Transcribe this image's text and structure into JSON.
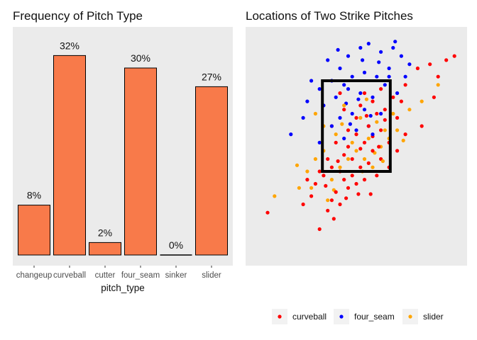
{
  "chart_data": [
    {
      "type": "bar",
      "title": "Frequency of Pitch Type",
      "xlabel": "pitch_type",
      "ylabel": "",
      "categories": [
        "changeup",
        "curveball",
        "cutter",
        "four_seam",
        "sinker",
        "slider"
      ],
      "values": [
        8,
        32,
        2,
        30,
        0,
        27
      ],
      "labels": [
        "8%",
        "32%",
        "2%",
        "30%",
        "0%",
        "27%"
      ],
      "ylim": [
        0,
        35
      ],
      "bar_color": "#F87A4A",
      "bar_outline": "#000000",
      "panel_background": "#EBEBEB",
      "grid": false
    },
    {
      "type": "scatter",
      "title": "Locations of Two Strike Pitches",
      "xlabel": "",
      "ylabel": "",
      "axes_visible": false,
      "panel_background": "#EBEBEB",
      "grid": false,
      "xlim": [
        -2.5,
        2.5
      ],
      "ylim": [
        -0.5,
        5.0
      ],
      "strike_zone": {
        "x": [
          -0.83,
          0.83
        ],
        "y": [
          1.7,
          3.9
        ],
        "color": "#000000"
      },
      "legend_position": "bottom",
      "series": [
        {
          "name": "curveball",
          "color": "#FF0000",
          "points": [
            [
              -2.17,
              0.7
            ],
            [
              -0.9,
              0.3
            ],
            [
              -0.7,
              0.75
            ],
            [
              -0.6,
              1.0
            ],
            [
              -1.1,
              1.1
            ],
            [
              -0.4,
              0.9
            ],
            [
              -0.5,
              1.2
            ],
            [
              -1.0,
              1.4
            ],
            [
              -0.8,
              1.6
            ],
            [
              -0.3,
              1.5
            ],
            [
              -0.6,
              1.8
            ],
            [
              -0.2,
              1.3
            ],
            [
              -0.4,
              1.7
            ],
            [
              -0.1,
              1.6
            ],
            [
              -0.7,
              2.0
            ],
            [
              -0.3,
              2.1
            ],
            [
              0.0,
              1.4
            ],
            [
              0.2,
              1.5
            ],
            [
              0.1,
              1.8
            ],
            [
              -0.2,
              2.3
            ],
            [
              0.3,
              1.9
            ],
            [
              -0.9,
              1.7
            ],
            [
              -1.2,
              1.5
            ],
            [
              -0.5,
              2.4
            ],
            [
              0.0,
              2.6
            ],
            [
              0.4,
              2.2
            ],
            [
              -0.1,
              2.0
            ],
            [
              0.2,
              2.4
            ],
            [
              0.5,
              1.6
            ],
            [
              0.6,
              2.0
            ],
            [
              0.3,
              2.8
            ],
            [
              0.6,
              2.7
            ],
            [
              0.8,
              2.4
            ],
            [
              0.5,
              3.1
            ],
            [
              0.0,
              3.0
            ],
            [
              0.4,
              3.4
            ],
            [
              0.7,
              3.2
            ],
            [
              0.2,
              3.6
            ],
            [
              0.6,
              3.7
            ],
            [
              1.0,
              3.0
            ],
            [
              0.9,
              3.5
            ],
            [
              1.2,
              3.8
            ],
            [
              1.5,
              4.2
            ],
            [
              1.8,
              4.3
            ],
            [
              2.0,
              4.0
            ],
            [
              2.2,
              4.4
            ],
            [
              2.4,
              4.5
            ],
            [
              1.9,
              3.5
            ],
            [
              1.6,
              2.8
            ],
            [
              1.2,
              2.6
            ],
            [
              1.0,
              2.2
            ],
            [
              0.8,
              1.8
            ],
            [
              -0.3,
              3.2
            ],
            [
              -0.6,
              2.8
            ],
            [
              -0.4,
              3.6
            ],
            [
              0.1,
              3.3
            ],
            [
              0.4,
              2.55
            ],
            [
              0.1,
              2.25
            ],
            [
              -0.2,
              2.7
            ],
            [
              -0.45,
              1.95
            ],
            [
              -0.75,
              1.35
            ],
            [
              -0.25,
              1.05
            ],
            [
              -0.55,
              0.55
            ],
            [
              -1.3,
              0.9
            ],
            [
              0.35,
              1.15
            ],
            [
              0.05,
              1.15
            ],
            [
              0.7,
              2.95
            ],
            [
              0.25,
              3.05
            ],
            [
              1.1,
              3.4
            ],
            [
              0.55,
              2.3
            ]
          ]
        },
        {
          "name": "four_seam",
          "color": "#0000FF",
          "points": [
            [
              -0.7,
              4.4
            ],
            [
              -0.4,
              4.2
            ],
            [
              -0.2,
              4.5
            ],
            [
              0.1,
              4.7
            ],
            [
              0.3,
              4.8
            ],
            [
              0.6,
              4.6
            ],
            [
              0.9,
              4.7
            ],
            [
              1.1,
              4.5
            ],
            [
              1.3,
              4.3
            ],
            [
              0.8,
              4.2
            ],
            [
              0.5,
              4.0
            ],
            [
              0.2,
              4.1
            ],
            [
              -0.1,
              4.0
            ],
            [
              -0.3,
              3.8
            ],
            [
              -0.6,
              3.9
            ],
            [
              -0.9,
              3.7
            ],
            [
              -1.1,
              3.9
            ],
            [
              -1.2,
              3.4
            ],
            [
              -0.8,
              3.3
            ],
            [
              -0.5,
              3.5
            ],
            [
              -0.2,
              3.7
            ],
            [
              0.1,
              3.6
            ],
            [
              0.4,
              3.5
            ],
            [
              0.7,
              3.8
            ],
            [
              1.0,
              3.6
            ],
            [
              0.2,
              3.2
            ],
            [
              -0.1,
              3.1
            ],
            [
              -0.4,
              3.0
            ],
            [
              0.3,
              2.8
            ],
            [
              0.0,
              2.7
            ],
            [
              -0.3,
              2.5
            ],
            [
              0.4,
              2.6
            ],
            [
              0.6,
              3.1
            ],
            [
              -0.6,
              2.8
            ],
            [
              -0.9,
              2.4
            ],
            [
              -1.3,
              3.0
            ],
            [
              -1.6,
              2.6
            ],
            [
              0.8,
              4.0
            ],
            [
              1.2,
              4.0
            ],
            [
              0.55,
              4.35
            ],
            [
              0.95,
              4.85
            ],
            [
              -0.45,
              4.65
            ],
            [
              0.15,
              4.4
            ],
            [
              -0.25,
              3.35
            ],
            [
              0.05,
              3.45
            ],
            [
              0.35,
              3.05
            ],
            [
              -0.15,
              2.85
            ]
          ]
        },
        {
          "name": "slider",
          "color": "#FFA500",
          "points": [
            [
              -2.0,
              1.1
            ],
            [
              -1.4,
              1.3
            ],
            [
              -1.2,
              1.7
            ],
            [
              -1.0,
              2.0
            ],
            [
              -0.8,
              2.2
            ],
            [
              -0.6,
              1.5
            ],
            [
              -0.4,
              1.8
            ],
            [
              -0.2,
              2.0
            ],
            [
              0.0,
              2.2
            ],
            [
              0.2,
              2.0
            ],
            [
              0.4,
              1.8
            ],
            [
              0.6,
              2.3
            ],
            [
              0.8,
              2.5
            ],
            [
              1.0,
              2.7
            ],
            [
              1.3,
              3.2
            ],
            [
              1.6,
              3.4
            ],
            [
              2.0,
              3.8
            ],
            [
              0.5,
              2.9
            ],
            [
              0.3,
              2.5
            ],
            [
              -0.1,
              2.4
            ],
            [
              -0.5,
              2.6
            ],
            [
              -0.8,
              2.8
            ],
            [
              -1.0,
              3.1
            ],
            [
              -0.3,
              3.3
            ],
            [
              0.1,
              3.0
            ],
            [
              0.7,
              2.7
            ],
            [
              0.9,
              3.1
            ],
            [
              -1.1,
              1.3
            ],
            [
              -0.7,
              1.0
            ],
            [
              0.15,
              1.7
            ],
            [
              0.45,
              2.15
            ],
            [
              -0.35,
              2.85
            ],
            [
              -0.55,
              1.25
            ],
            [
              0.65,
              1.95
            ],
            [
              0.25,
              3.45
            ],
            [
              1.15,
              2.45
            ],
            [
              -1.45,
              1.85
            ]
          ]
        }
      ]
    }
  ]
}
